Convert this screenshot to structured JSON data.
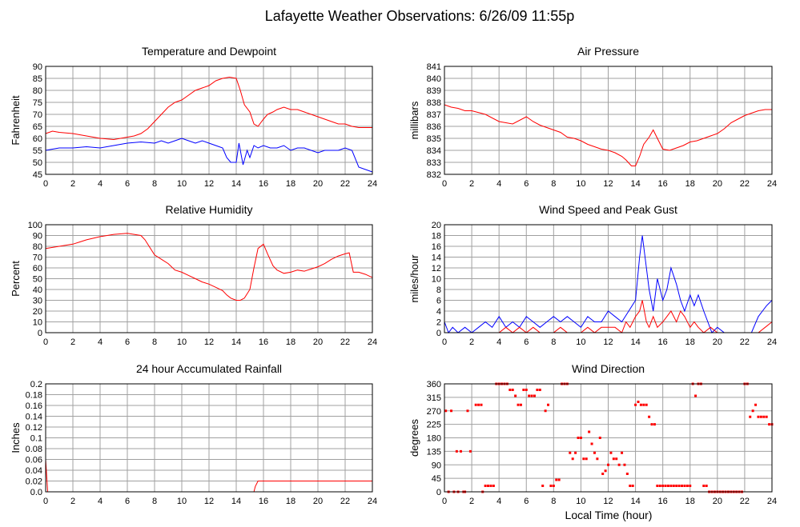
{
  "page_title": "Lafayette Weather Observations: 6/26/09 11:55p",
  "x_axis_label": "Local Time (hour)",
  "colors": {
    "red": "#ff0000",
    "blue": "#0000ff",
    "grid": "#a0a0a0",
    "frame": "#000000"
  },
  "chart_data": [
    {
      "id": "temp",
      "type": "line",
      "title": "Temperature and Dewpoint",
      "ylabel": "Fahrenheit",
      "xlim": [
        0,
        24
      ],
      "ylim": [
        45,
        90
      ],
      "yticks": [
        45,
        50,
        55,
        60,
        65,
        70,
        75,
        80,
        85,
        90
      ],
      "xticks": [
        0,
        2,
        4,
        6,
        8,
        10,
        12,
        14,
        16,
        18,
        20,
        22,
        24
      ],
      "series": [
        {
          "color": "#ff0000",
          "x": [
            0,
            0.5,
            1,
            2,
            3,
            4,
            5,
            6,
            6.5,
            7,
            7.5,
            8,
            8.5,
            9,
            9.5,
            10,
            10.5,
            11,
            11.5,
            12,
            12.5,
            13,
            13.5,
            14,
            14.3,
            14.6,
            15,
            15.3,
            15.6,
            16,
            16.3,
            16.7,
            17,
            17.5,
            18,
            18.5,
            19,
            19.5,
            20,
            20.5,
            21,
            21.5,
            22,
            22.5,
            23,
            23.5,
            24
          ],
          "y": [
            62,
            63,
            62.5,
            62,
            61,
            60,
            59.5,
            60.5,
            61,
            62,
            64,
            67,
            70,
            73,
            75,
            76,
            78,
            80,
            81,
            82,
            84,
            85,
            85.5,
            85,
            80,
            74,
            71,
            66,
            65,
            68,
            70,
            71,
            72,
            73,
            72,
            72,
            71,
            70,
            69,
            68,
            67,
            66,
            66,
            65,
            64.5,
            64.5,
            64.5
          ]
        },
        {
          "color": "#0000ff",
          "x": [
            0,
            1,
            2,
            3,
            4,
            5,
            6,
            7,
            8,
            8.5,
            9,
            9.5,
            10,
            10.5,
            11,
            11.5,
            12,
            12.5,
            13,
            13.3,
            13.6,
            14,
            14.2,
            14.5,
            14.8,
            15,
            15.3,
            15.6,
            16,
            16.5,
            17,
            17.5,
            18,
            18.5,
            19,
            19.5,
            20,
            20.5,
            21,
            21.5,
            22,
            22.5,
            23,
            23.5,
            24
          ],
          "y": [
            55,
            56,
            56,
            56.5,
            56,
            57,
            58,
            58.5,
            58,
            59,
            58,
            59,
            60,
            59,
            58,
            59,
            58,
            57,
            56,
            52,
            50,
            50,
            58,
            49,
            55,
            52,
            57,
            56,
            57,
            56,
            56,
            57,
            55,
            56,
            56,
            55,
            54,
            55,
            55,
            55,
            56,
            55,
            48,
            47,
            46
          ]
        }
      ]
    },
    {
      "id": "pressure",
      "type": "line",
      "title": "Air Pressure",
      "ylabel": "millibars",
      "xlim": [
        0,
        24
      ],
      "ylim": [
        832,
        841
      ],
      "yticks": [
        832,
        833,
        834,
        835,
        836,
        837,
        838,
        839,
        840,
        841
      ],
      "xticks": [
        0,
        2,
        4,
        6,
        8,
        10,
        12,
        14,
        16,
        18,
        20,
        22,
        24
      ],
      "series": [
        {
          "color": "#ff0000",
          "x": [
            0,
            0.5,
            1,
            1.5,
            2,
            3,
            4,
            5,
            6,
            6.5,
            7,
            7.5,
            8,
            8.5,
            9,
            9.5,
            10,
            10.5,
            11,
            11.5,
            12,
            12.5,
            13,
            13.3,
            13.7,
            14,
            14.3,
            14.6,
            15,
            15.3,
            15.6,
            16,
            16.5,
            17,
            17.5,
            18,
            18.5,
            19,
            19.5,
            20,
            20.5,
            21,
            21.5,
            22,
            22.5,
            23,
            23.5,
            24
          ],
          "y": [
            837.8,
            837.6,
            837.5,
            837.3,
            837.3,
            837,
            836.4,
            836.2,
            836.8,
            836.4,
            836.1,
            835.9,
            835.7,
            835.5,
            835.1,
            835,
            834.8,
            834.5,
            834.3,
            834.1,
            834,
            833.8,
            833.5,
            833.2,
            832.7,
            832.7,
            833.5,
            834.5,
            835.1,
            835.7,
            835,
            834.1,
            834,
            834.2,
            834.4,
            834.7,
            834.8,
            835,
            835.2,
            835.4,
            835.8,
            836.3,
            836.6,
            836.9,
            837.1,
            837.3,
            837.4,
            837.4
          ]
        }
      ]
    },
    {
      "id": "humidity",
      "type": "line",
      "title": "Relative Humidity",
      "ylabel": "Percent",
      "xlim": [
        0,
        24
      ],
      "ylim": [
        0,
        100
      ],
      "yticks": [
        0,
        10,
        20,
        30,
        40,
        50,
        60,
        70,
        80,
        90,
        100
      ],
      "xticks": [
        0,
        2,
        4,
        6,
        8,
        10,
        12,
        14,
        16,
        18,
        20,
        22,
        24
      ],
      "series": [
        {
          "color": "#ff0000",
          "x": [
            0,
            0.5,
            1,
            1.5,
            2,
            2.5,
            3,
            4,
            5,
            6,
            6.5,
            7,
            7.3,
            7.6,
            8,
            8.5,
            9,
            9.5,
            10,
            10.5,
            11,
            11.5,
            12,
            12.5,
            13,
            13.3,
            13.6,
            14,
            14.3,
            14.6,
            15,
            15.3,
            15.6,
            16,
            16.3,
            16.7,
            17,
            17.5,
            18,
            18.5,
            19,
            19.5,
            20,
            20.5,
            21,
            21.5,
            22,
            22.3,
            22.6,
            23,
            23.5,
            24
          ],
          "y": [
            78,
            79,
            80,
            81,
            82,
            84,
            86,
            89,
            91,
            92,
            91,
            90,
            86,
            80,
            72,
            68,
            64,
            58,
            56,
            53,
            50,
            47,
            45,
            42,
            39,
            35,
            32,
            30,
            30,
            32,
            40,
            60,
            78,
            82,
            73,
            62,
            58,
            55,
            56,
            58,
            57,
            59,
            61,
            64,
            68,
            71,
            73,
            74,
            56,
            56,
            54,
            51
          ]
        }
      ]
    },
    {
      "id": "wind_speed",
      "type": "line",
      "title": "Wind Speed and Peak Gust",
      "ylabel": "miles/hour",
      "xlim": [
        0,
        24
      ],
      "ylim": [
        0,
        20
      ],
      "yticks": [
        0,
        2,
        4,
        6,
        8,
        10,
        12,
        14,
        16,
        18,
        20
      ],
      "xticks": [
        0,
        2,
        4,
        6,
        8,
        10,
        12,
        14,
        16,
        18,
        20,
        22,
        24
      ],
      "series": [
        {
          "color": "#0000ff",
          "x": [
            0,
            0.3,
            0.6,
            1,
            1.5,
            2,
            2.5,
            3,
            3.5,
            4,
            4.5,
            5,
            5.5,
            6,
            6.5,
            7,
            7.5,
            8,
            8.5,
            9,
            9.5,
            10,
            10.5,
            11,
            11.5,
            12,
            12.5,
            13,
            13.5,
            14,
            14.3,
            14.5,
            14.8,
            15,
            15.3,
            15.6,
            16,
            16.3,
            16.6,
            17,
            17.3,
            17.6,
            18,
            18.3,
            18.6,
            19,
            19.3,
            19.6,
            20,
            20.5,
            21,
            21.5,
            22,
            22.5,
            23,
            23.3,
            23.6,
            24
          ],
          "y": [
            2,
            0,
            1,
            0,
            1,
            0,
            1,
            2,
            1,
            3,
            1,
            2,
            1,
            3,
            2,
            1,
            2,
            3,
            2,
            3,
            2,
            1,
            3,
            2,
            2,
            4,
            3,
            2,
            4,
            6,
            14,
            18,
            12,
            8,
            4,
            10,
            6,
            8,
            12,
            9,
            6,
            4,
            7,
            5,
            7,
            4,
            2,
            0,
            1,
            0,
            0,
            0,
            0,
            0,
            3,
            4,
            5,
            6
          ]
        },
        {
          "color": "#ff0000",
          "x": [
            0,
            1,
            2,
            3,
            4,
            4.5,
            5,
            5.5,
            6,
            6.5,
            7,
            8,
            8.5,
            9,
            10,
            10.5,
            11,
            11.5,
            12,
            12.5,
            13,
            13.3,
            13.6,
            14,
            14.3,
            14.5,
            14.8,
            15,
            15.3,
            15.6,
            16,
            16.3,
            16.6,
            17,
            17.3,
            17.6,
            18,
            18.3,
            18.6,
            19,
            19.5,
            20,
            21,
            22,
            23,
            23.5,
            24
          ],
          "y": [
            0,
            0,
            0,
            0,
            0,
            1,
            0,
            1,
            0,
            1,
            0,
            0,
            1,
            0,
            0,
            1,
            0,
            1,
            1,
            1,
            0,
            2,
            1,
            3,
            4,
            6,
            2,
            1,
            3,
            1,
            2,
            3,
            4,
            2,
            4,
            3,
            1,
            2,
            1,
            0,
            1,
            0,
            0,
            0,
            0,
            1,
            2
          ]
        }
      ]
    },
    {
      "id": "rainfall",
      "type": "line",
      "title": "24 hour Accumulated Rainfall",
      "ylabel": "Inches",
      "xlim": [
        0,
        24
      ],
      "ylim": [
        0.0,
        0.2
      ],
      "yticks": [
        0.0,
        0.02,
        0.04,
        0.06,
        0.08,
        0.1,
        0.12,
        0.14,
        0.16,
        0.18,
        0.2
      ],
      "ytick_labels": [
        "0.0",
        "0.02",
        "0.04",
        "0.06",
        "0.08",
        "0.1",
        "0.12",
        "0.14",
        "0.16",
        "0.18",
        "0.2"
      ],
      "xticks": [
        0,
        2,
        4,
        6,
        8,
        10,
        12,
        14,
        16,
        18,
        20,
        22,
        24
      ],
      "series": [
        {
          "color": "#ff0000",
          "x": [
            0,
            0.1,
            0.15,
            15.3,
            15.4,
            15.6,
            24
          ],
          "y": [
            0.06,
            0.02,
            0,
            0,
            0.01,
            0.02,
            0.02
          ]
        }
      ]
    },
    {
      "id": "wind_dir",
      "type": "scatter",
      "title": "Wind Direction",
      "ylabel": "degrees",
      "xlim": [
        0,
        24
      ],
      "ylim": [
        0,
        360
      ],
      "yticks": [
        0,
        45,
        90,
        135,
        180,
        225,
        270,
        315,
        360
      ],
      "xticks": [
        0,
        2,
        4,
        6,
        8,
        10,
        12,
        14,
        16,
        18,
        20,
        22,
        24
      ],
      "series": [
        {
          "color": "#ff0000",
          "x": [
            0.1,
            0.3,
            0.5,
            0.7,
            0.9,
            1,
            1.2,
            1.4,
            1.5,
            1.7,
            1.9,
            2.3,
            2.5,
            2.7,
            2.8,
            3,
            3.2,
            3.4,
            3.6,
            3.8,
            4,
            4.2,
            4.4,
            4.6,
            4.8,
            5.0,
            5.2,
            5.4,
            5.6,
            5.8,
            6,
            6.2,
            6.4,
            6.6,
            6.8,
            7,
            7.2,
            7.4,
            7.6,
            7.8,
            8,
            8.2,
            8.4,
            8.6,
            8.8,
            9,
            9.2,
            9.4,
            9.6,
            9.8,
            10,
            10.2,
            10.4,
            10.6,
            10.8,
            11,
            11.2,
            11.4,
            11.6,
            11.8,
            12,
            12.2,
            12.4,
            12.6,
            12.8,
            13,
            13.2,
            13.4,
            13.6,
            13.8,
            14,
            14.2,
            14.4,
            14.6,
            14.8,
            15,
            15.2,
            15.4,
            15.6,
            15.8,
            16,
            16.2,
            16.4,
            16.6,
            16.8,
            17,
            17.2,
            17.4,
            17.6,
            17.8,
            18,
            18.2,
            18.4,
            18.6,
            18.8,
            19,
            19.2,
            19.4,
            19.6,
            19.8,
            20,
            20.2,
            20.4,
            20.6,
            20.8,
            21,
            21.2,
            21.4,
            21.6,
            21.8,
            22,
            22.2,
            22.4,
            22.6,
            22.8,
            23,
            23.2,
            23.4,
            23.6,
            23.8,
            24
          ],
          "y": [
            270,
            0,
            270,
            0,
            135,
            0,
            135,
            0,
            0,
            270,
            135,
            290,
            290,
            290,
            0,
            20,
            20,
            20,
            20,
            360,
            360,
            360,
            360,
            360,
            340,
            340,
            320,
            290,
            290,
            340,
            340,
            320,
            320,
            320,
            340,
            340,
            20,
            270,
            290,
            20,
            20,
            40,
            40,
            360,
            360,
            360,
            130,
            110,
            130,
            180,
            180,
            110,
            110,
            200,
            160,
            130,
            110,
            180,
            60,
            70,
            90,
            130,
            110,
            110,
            90,
            130,
            90,
            60,
            20,
            20,
            290,
            300,
            290,
            290,
            290,
            250,
            225,
            225,
            20,
            20,
            20,
            20,
            20,
            20,
            20,
            20,
            20,
            20,
            20,
            20,
            20,
            360,
            320,
            360,
            360,
            20,
            20,
            0,
            0,
            0,
            0,
            0,
            0,
            0,
            0,
            0,
            0,
            0,
            0,
            0,
            360,
            360,
            250,
            270,
            290,
            250,
            250,
            250,
            250,
            225,
            225
          ]
        }
      ]
    }
  ]
}
